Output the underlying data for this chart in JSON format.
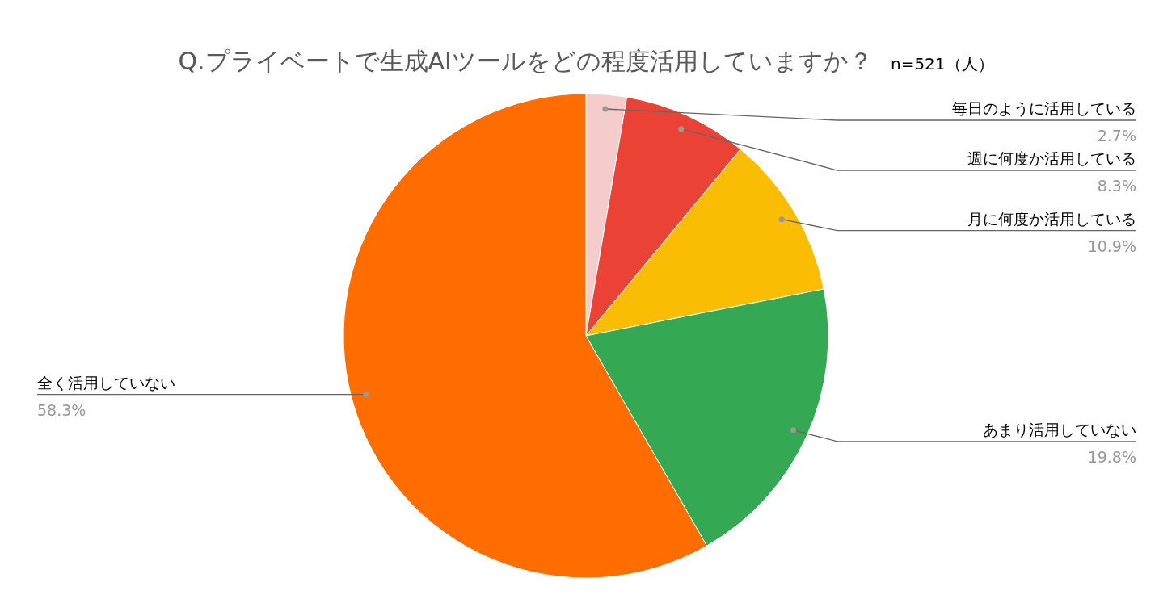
{
  "chart_data": {
    "type": "pie",
    "title": "Q.プライベートで生成AIツールをどの程度活用していますか？",
    "subtitle": "n=521（人）",
    "categories": [
      "毎日のように活用している",
      "週に何度か活用している",
      "月に何度か活用している",
      "あまり活用していない",
      "全く活用していない"
    ],
    "values": [
      2.7,
      8.3,
      10.9,
      19.8,
      58.3
    ],
    "colors": [
      "#f4cccc",
      "#ea4335",
      "#fbbc04",
      "#34a853",
      "#ff6d01"
    ],
    "value_labels": [
      "2.7%",
      "8.3%",
      "10.9%",
      "19.8%",
      "58.3%"
    ],
    "legend": false
  }
}
